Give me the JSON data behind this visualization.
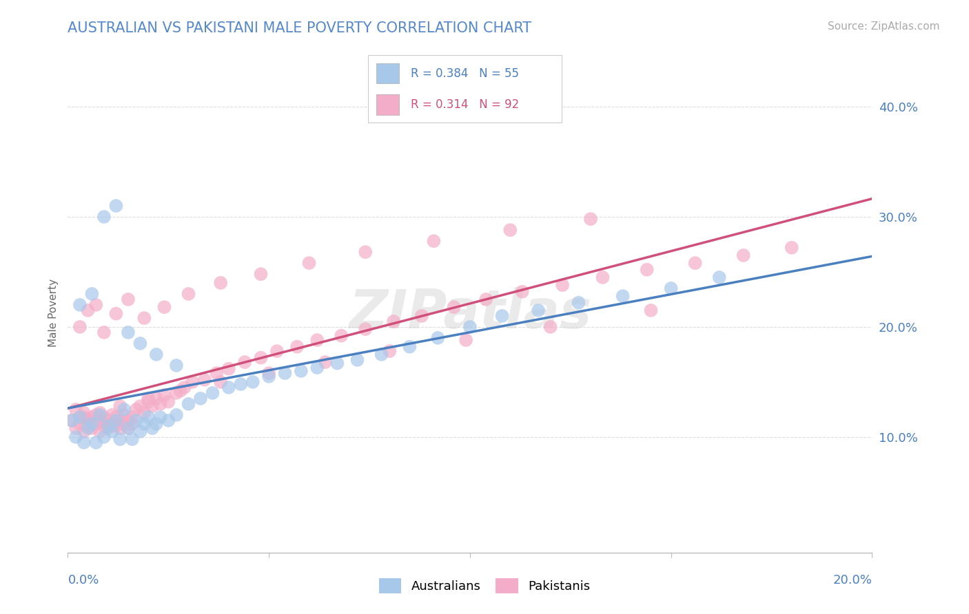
{
  "title": "AUSTRALIAN VS PAKISTANI MALE POVERTY CORRELATION CHART",
  "source": "Source: ZipAtlas.com",
  "ylabel": "Male Poverty",
  "xlim": [
    0.0,
    0.2
  ],
  "ylim": [
    -0.005,
    0.43
  ],
  "yticks": [
    0.1,
    0.2,
    0.3,
    0.4
  ],
  "ytick_labels": [
    "10.0%",
    "20.0%",
    "30.0%",
    "40.0%"
  ],
  "watermark": "ZIPatlas",
  "legend_r1": "R = 0.384",
  "legend_n1": "N = 55",
  "legend_r2": "R = 0.314",
  "legend_n2": "N = 92",
  "color_aus": "#a8c8ea",
  "color_pak": "#f4adc8",
  "color_aus_line": "#4a7fc0",
  "color_pak_line": "#d0507a",
  "color_title": "#5588cc",
  "color_source": "#aaaaaa",
  "background": "#ffffff",
  "grid_color": "#dddddd",
  "scatter_aus": {
    "x": [
      0.001,
      0.002,
      0.003,
      0.004,
      0.005,
      0.006,
      0.007,
      0.008,
      0.009,
      0.01,
      0.011,
      0.012,
      0.013,
      0.014,
      0.015,
      0.016,
      0.017,
      0.018,
      0.019,
      0.02,
      0.021,
      0.022,
      0.023,
      0.025,
      0.027,
      0.03,
      0.033,
      0.036,
      0.04,
      0.043,
      0.046,
      0.05,
      0.054,
      0.058,
      0.062,
      0.067,
      0.072,
      0.078,
      0.085,
      0.092,
      0.1,
      0.108,
      0.117,
      0.127,
      0.138,
      0.15,
      0.162,
      0.003,
      0.006,
      0.009,
      0.012,
      0.015,
      0.018,
      0.022,
      0.027
    ],
    "y": [
      0.115,
      0.1,
      0.118,
      0.095,
      0.108,
      0.112,
      0.095,
      0.12,
      0.1,
      0.11,
      0.105,
      0.115,
      0.098,
      0.125,
      0.108,
      0.098,
      0.115,
      0.105,
      0.112,
      0.118,
      0.108,
      0.112,
      0.118,
      0.115,
      0.12,
      0.13,
      0.135,
      0.14,
      0.145,
      0.148,
      0.15,
      0.155,
      0.158,
      0.16,
      0.163,
      0.167,
      0.17,
      0.175,
      0.182,
      0.19,
      0.2,
      0.21,
      0.215,
      0.222,
      0.228,
      0.235,
      0.245,
      0.22,
      0.23,
      0.3,
      0.31,
      0.195,
      0.185,
      0.175,
      0.165
    ]
  },
  "scatter_pak": {
    "x": [
      0.001,
      0.002,
      0.002,
      0.003,
      0.003,
      0.004,
      0.004,
      0.005,
      0.005,
      0.006,
      0.006,
      0.007,
      0.007,
      0.008,
      0.008,
      0.009,
      0.009,
      0.01,
      0.01,
      0.011,
      0.011,
      0.012,
      0.012,
      0.013,
      0.013,
      0.014,
      0.014,
      0.015,
      0.015,
      0.016,
      0.016,
      0.017,
      0.018,
      0.019,
      0.02,
      0.021,
      0.022,
      0.023,
      0.024,
      0.025,
      0.027,
      0.029,
      0.031,
      0.034,
      0.037,
      0.04,
      0.044,
      0.048,
      0.052,
      0.057,
      0.062,
      0.068,
      0.074,
      0.081,
      0.088,
      0.096,
      0.104,
      0.113,
      0.123,
      0.133,
      0.144,
      0.156,
      0.168,
      0.18,
      0.003,
      0.005,
      0.007,
      0.009,
      0.012,
      0.015,
      0.019,
      0.024,
      0.03,
      0.038,
      0.048,
      0.06,
      0.074,
      0.091,
      0.11,
      0.13,
      0.004,
      0.008,
      0.013,
      0.02,
      0.028,
      0.038,
      0.05,
      0.064,
      0.08,
      0.099,
      0.12,
      0.145
    ],
    "y": [
      0.115,
      0.108,
      0.125,
      0.112,
      0.118,
      0.105,
      0.122,
      0.11,
      0.116,
      0.108,
      0.118,
      0.112,
      0.12,
      0.105,
      0.115,
      0.11,
      0.118,
      0.108,
      0.115,
      0.112,
      0.12,
      0.11,
      0.118,
      0.108,
      0.115,
      0.112,
      0.12,
      0.108,
      0.115,
      0.112,
      0.118,
      0.125,
      0.128,
      0.122,
      0.132,
      0.128,
      0.135,
      0.13,
      0.138,
      0.132,
      0.14,
      0.145,
      0.15,
      0.152,
      0.158,
      0.162,
      0.168,
      0.172,
      0.178,
      0.182,
      0.188,
      0.192,
      0.198,
      0.205,
      0.21,
      0.218,
      0.225,
      0.232,
      0.238,
      0.245,
      0.252,
      0.258,
      0.265,
      0.272,
      0.2,
      0.215,
      0.22,
      0.195,
      0.212,
      0.225,
      0.208,
      0.218,
      0.23,
      0.24,
      0.248,
      0.258,
      0.268,
      0.278,
      0.288,
      0.298,
      0.118,
      0.122,
      0.128,
      0.135,
      0.142,
      0.15,
      0.158,
      0.168,
      0.178,
      0.188,
      0.2,
      0.215
    ]
  }
}
